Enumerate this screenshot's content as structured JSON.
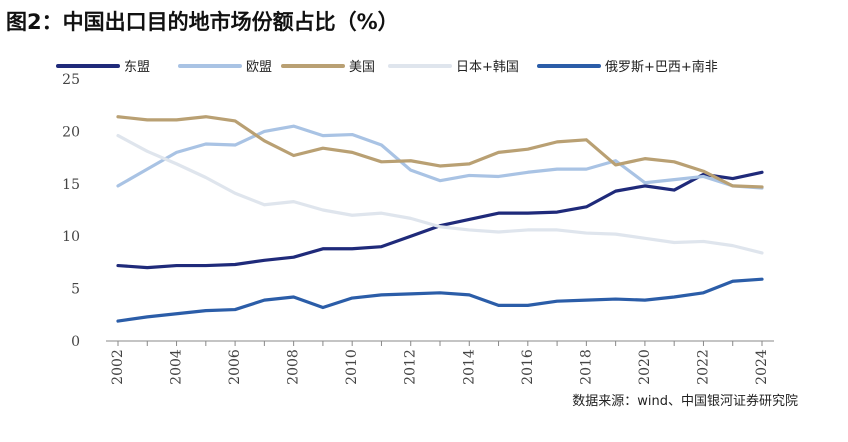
{
  "title": "图2：中国出口目的地市场份额占比（%）",
  "source": "数据来源：wind、中国银河证券研究院",
  "chart_data": {
    "type": "line",
    "title": "图2：中国出口目的地市场份额占比（%）",
    "xlabel": "",
    "ylabel": "",
    "ylim": [
      0,
      25
    ],
    "yticks": [
      0,
      5,
      10,
      15,
      20,
      25
    ],
    "x": [
      2002,
      2003,
      2004,
      2005,
      2006,
      2007,
      2008,
      2009,
      2010,
      2011,
      2012,
      2013,
      2014,
      2015,
      2016,
      2017,
      2018,
      2019,
      2020,
      2021,
      2022,
      2023,
      2024
    ],
    "xtick_labels": [
      "2002",
      "2004",
      "2006",
      "2008",
      "2010",
      "2012",
      "2014",
      "2016",
      "2018",
      "2020",
      "2022",
      "2024"
    ],
    "grid": false,
    "legend_position": "top",
    "series": [
      {
        "name": "东盟",
        "color": "#1f2a7a",
        "values": [
          7.2,
          7.0,
          7.2,
          7.2,
          7.3,
          7.7,
          8.0,
          8.8,
          8.8,
          9.0,
          10.0,
          11.0,
          11.6,
          12.2,
          12.2,
          12.3,
          12.8,
          14.3,
          14.8,
          14.4,
          15.9,
          15.5,
          16.1
        ]
      },
      {
        "name": "欧盟",
        "color": "#a9c3e4",
        "values": [
          14.8,
          16.4,
          18.0,
          18.8,
          18.7,
          20.0,
          20.5,
          19.6,
          19.7,
          18.7,
          16.3,
          15.3,
          15.8,
          15.7,
          16.1,
          16.4,
          16.4,
          17.2,
          15.1,
          15.4,
          15.7,
          14.8,
          14.6
        ]
      },
      {
        "name": "美国",
        "color": "#b9a073",
        "values": [
          21.4,
          21.1,
          21.1,
          21.4,
          21.0,
          19.1,
          17.7,
          18.4,
          18.0,
          17.1,
          17.2,
          16.7,
          16.9,
          18.0,
          18.3,
          19.0,
          19.2,
          16.8,
          17.4,
          17.1,
          16.2,
          14.8,
          14.7
        ]
      },
      {
        "name": "日本+韩国",
        "color": "#dfe5ed",
        "values": [
          19.6,
          18.1,
          16.9,
          15.6,
          14.1,
          13.0,
          13.3,
          12.5,
          12.0,
          12.2,
          11.7,
          10.9,
          10.6,
          10.4,
          10.6,
          10.6,
          10.3,
          10.2,
          9.8,
          9.4,
          9.5,
          9.1,
          8.4
        ]
      },
      {
        "name": "俄罗斯+巴西+南非",
        "color": "#2b5da8",
        "values": [
          1.9,
          2.3,
          2.6,
          2.9,
          3.0,
          3.9,
          4.2,
          3.2,
          4.1,
          4.4,
          4.5,
          4.6,
          4.4,
          3.4,
          3.4,
          3.8,
          3.9,
          4.0,
          3.9,
          4.2,
          4.6,
          5.7,
          5.9
        ]
      }
    ]
  }
}
